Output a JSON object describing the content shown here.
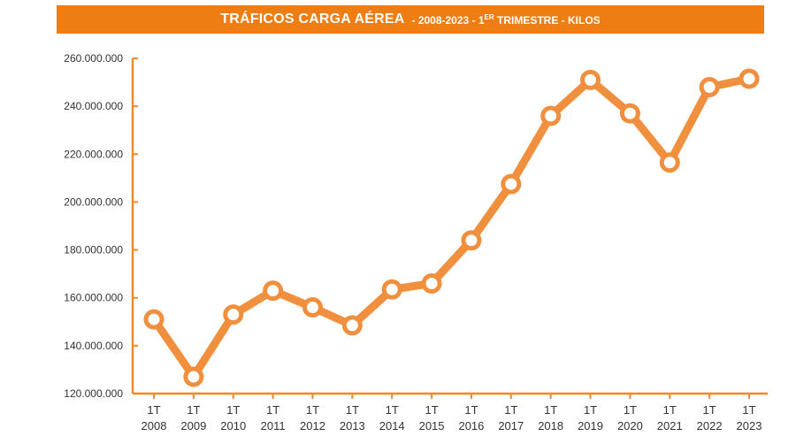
{
  "chart_data": {
    "type": "line",
    "title": "TRÁFICOS CARGA AÉREA",
    "subtitle_prefix": "- 2008-2023 - 1",
    "subtitle_sup": "ER",
    "subtitle_suffix": " TRIMESTRE - KILOS",
    "categories": [
      [
        "1T",
        "2008"
      ],
      [
        "1T",
        "2009"
      ],
      [
        "1T",
        "2010"
      ],
      [
        "1T",
        "2011"
      ],
      [
        "1T",
        "2012"
      ],
      [
        "1T",
        "2013"
      ],
      [
        "1T",
        "2014"
      ],
      [
        "1T",
        "2015"
      ],
      [
        "1T",
        "2016"
      ],
      [
        "1T",
        "2017"
      ],
      [
        "1T",
        "2018"
      ],
      [
        "1T",
        "2019"
      ],
      [
        "1T",
        "2020"
      ],
      [
        "1T",
        "2021"
      ],
      [
        "1T",
        "2022"
      ],
      [
        "1T",
        "2023"
      ]
    ],
    "values": [
      151000000,
      127000000,
      153000000,
      163000000,
      156000000,
      148500000,
      163500000,
      166000000,
      184000000,
      207500000,
      236000000,
      251000000,
      237000000,
      216500000,
      248000000,
      251500000
    ],
    "ylim": [
      120000000,
      260000000
    ],
    "yticks": [
      120000000,
      140000000,
      160000000,
      180000000,
      200000000,
      220000000,
      240000000,
      260000000
    ],
    "ytick_labels": [
      "120.000.000",
      "140.000.000",
      "160.000.000",
      "180.000.000",
      "200.000.000",
      "220.000.000",
      "240.000.000",
      "260.000.000"
    ],
    "grid": false,
    "colors": {
      "line": "#f0903f",
      "axis": "#ee8a2e",
      "title_bg": "#ee7d13",
      "marker_fill": "#ffffff"
    }
  }
}
